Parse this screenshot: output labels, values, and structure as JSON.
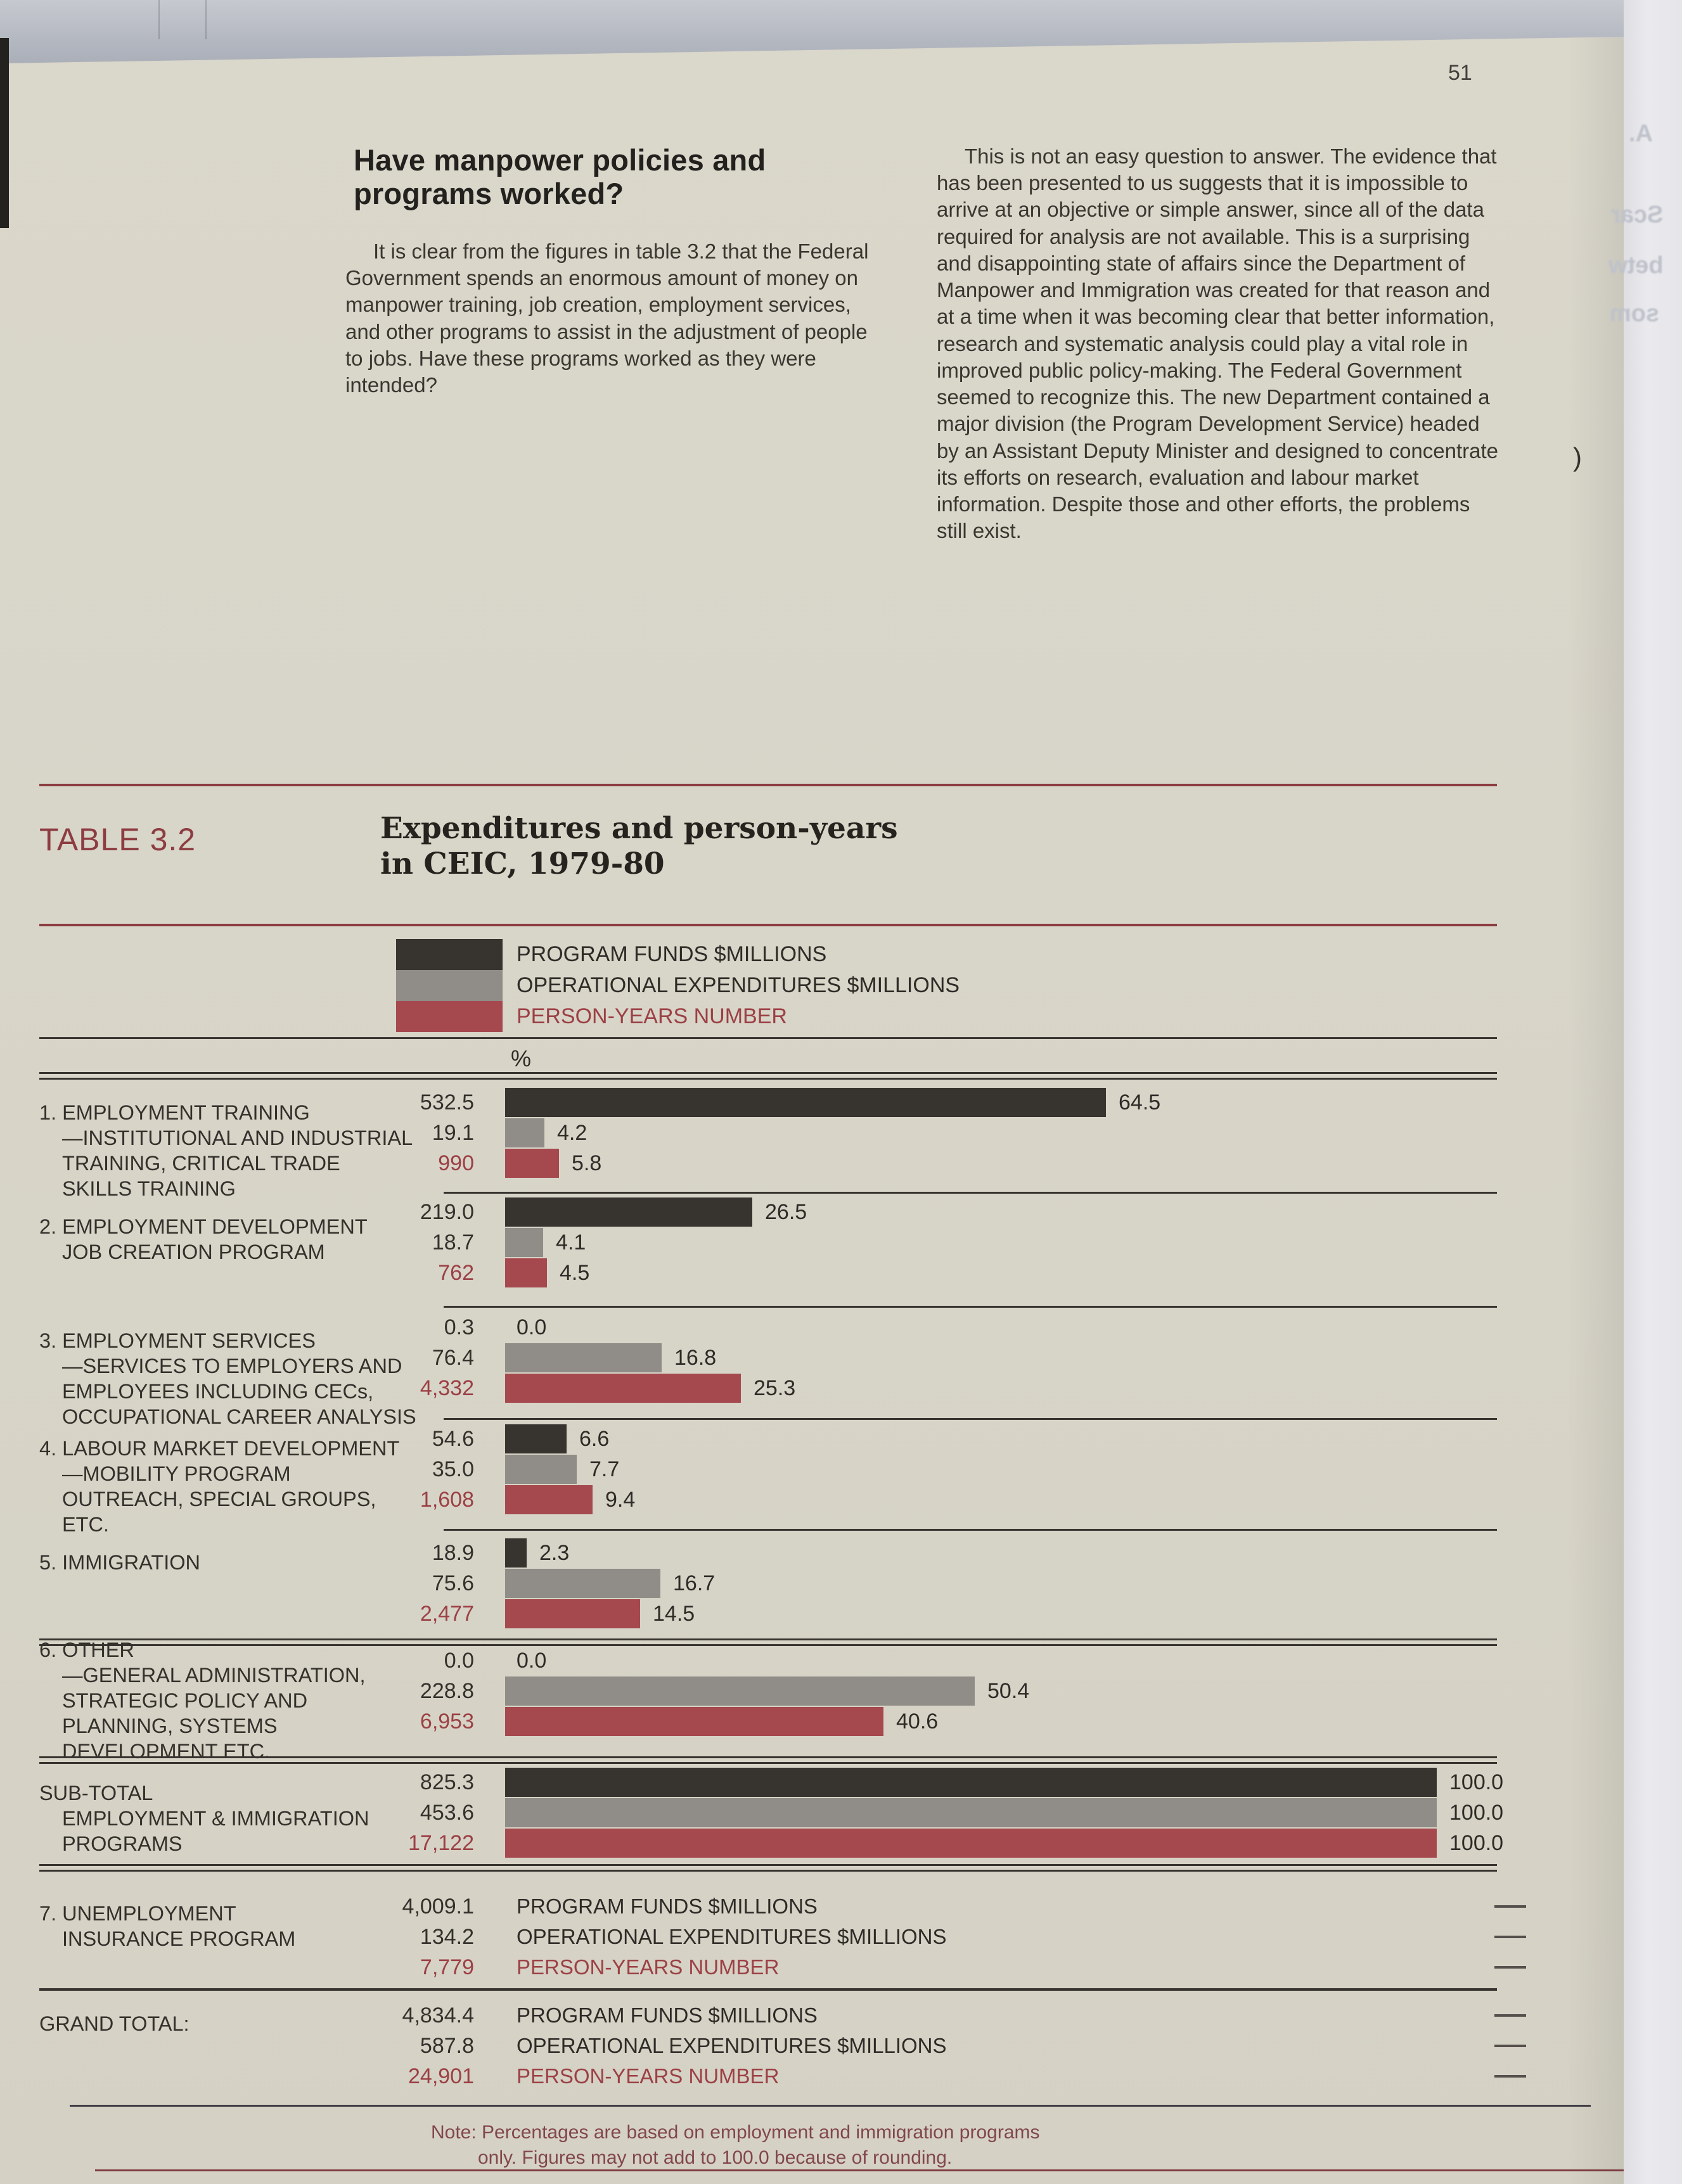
{
  "page": {
    "number": "51"
  },
  "article": {
    "heading": "Have manpower policies and programs worked?",
    "left_paragraph": "It is clear from the figures in table 3.2 that the Federal Government spends an enormous amount of money on manpower training, job creation, employment services, and other programs to assist in the adjustment of people to jobs. Have these programs worked as they were intended?",
    "right_paragraph": "This is not an easy question to answer. The evidence that has been presented to us suggests that it is impossible to arrive at an objective or simple answer, since all of the data required for analysis are not available. This is a surprising and disappointing state of affairs since the Department of Manpower and Immigration was created for that reason and at a time when it was becoming clear that better information, research and systematic analysis could play a vital role in improved public policy-making. The Federal Government seemed to recognize this. The new Department contained a major division (the Program Development Service) headed by an Assistant Deputy Minister and designed to concentrate its efforts on research, evaluation and labour market information. Despite those and other efforts, the problems still exist."
  },
  "table": {
    "label": "TABLE 3.2",
    "title_line1": "Expenditures and person-years",
    "title_line2": "in CEIC, 1979-80",
    "axis_unit": "%",
    "legend": [
      {
        "name": "PROGRAM FUNDS $MILLIONS",
        "color": "#37332e",
        "text_color": "#2e2b27"
      },
      {
        "name": "OPERATIONAL EXPENDITURES $MILLIONS",
        "color": "#908d88",
        "text_color": "#2e2b27"
      },
      {
        "name": "PERSON-YEARS NUMBER",
        "color": "#a5494e",
        "text_color": "#9c4045"
      }
    ],
    "note_line1": "Note: Percentages are based on employment and immigration programs",
    "note_line2": "only. Figures may not add to 100.0 because of rounding."
  },
  "chart_data": {
    "type": "bar",
    "orientation": "horizontal",
    "unit": "%",
    "xlim": [
      0,
      100
    ],
    "series": [
      "PROGRAM FUNDS $MILLIONS",
      "OPERATIONAL EXPENDITURES $MILLIONS",
      "PERSON-YEARS NUMBER"
    ],
    "rows": [
      {
        "label_lines": [
          "1. EMPLOYMENT TRAINING",
          "—INSTITUTIONAL AND INDUSTRIAL",
          "TRAINING, CRITICAL TRADE",
          "SKILLS TRAINING"
        ],
        "entries": [
          {
            "series": 0,
            "value": "532.5",
            "pct": 64.5,
            "pct_label": "64.5"
          },
          {
            "series": 1,
            "value": "19.1",
            "pct": 4.2,
            "pct_label": "4.2"
          },
          {
            "series": 2,
            "value": "990",
            "pct": 5.8,
            "pct_label": "5.8"
          }
        ]
      },
      {
        "label_lines": [
          "2. EMPLOYMENT DEVELOPMENT",
          "JOB CREATION PROGRAM"
        ],
        "entries": [
          {
            "series": 0,
            "value": "219.0",
            "pct": 26.5,
            "pct_label": "26.5"
          },
          {
            "series": 1,
            "value": "18.7",
            "pct": 4.1,
            "pct_label": "4.1"
          },
          {
            "series": 2,
            "value": "762",
            "pct": 4.5,
            "pct_label": "4.5"
          }
        ]
      },
      {
        "label_lines": [
          "3. EMPLOYMENT SERVICES",
          "—SERVICES TO EMPLOYERS AND",
          "EMPLOYEES INCLUDING CECs,",
          "OCCUPATIONAL CAREER ANALYSIS"
        ],
        "entries": [
          {
            "series": 0,
            "value": "0.3",
            "pct": 0,
            "pct_label": "0.0"
          },
          {
            "series": 1,
            "value": "76.4",
            "pct": 16.8,
            "pct_label": "16.8"
          },
          {
            "series": 2,
            "value": "4,332",
            "pct": 25.3,
            "pct_label": "25.3"
          }
        ]
      },
      {
        "label_lines": [
          "4. LABOUR MARKET DEVELOPMENT",
          "—MOBILITY PROGRAM",
          "OUTREACH, SPECIAL GROUPS,",
          "ETC."
        ],
        "entries": [
          {
            "series": 0,
            "value": "54.6",
            "pct": 6.6,
            "pct_label": "6.6"
          },
          {
            "series": 1,
            "value": "35.0",
            "pct": 7.7,
            "pct_label": "7.7"
          },
          {
            "series": 2,
            "value": "1,608",
            "pct": 9.4,
            "pct_label": "9.4"
          }
        ]
      },
      {
        "label_lines": [
          "5. IMMIGRATION"
        ],
        "entries": [
          {
            "series": 0,
            "value": "18.9",
            "pct": 2.3,
            "pct_label": "2.3"
          },
          {
            "series": 1,
            "value": "75.6",
            "pct": 16.7,
            "pct_label": "16.7"
          },
          {
            "series": 2,
            "value": "2,477",
            "pct": 14.5,
            "pct_label": "14.5"
          }
        ]
      },
      {
        "label_lines": [
          "6. OTHER",
          "—GENERAL ADMINISTRATION,",
          "STRATEGIC POLICY AND",
          "PLANNING, SYSTEMS",
          "DEVELOPMENT ETC."
        ],
        "entries": [
          {
            "series": 0,
            "value": "0.0",
            "pct": 0,
            "pct_label": "0.0"
          },
          {
            "series": 1,
            "value": "228.8",
            "pct": 50.4,
            "pct_label": "50.4"
          },
          {
            "series": 2,
            "value": "6,953",
            "pct": 40.6,
            "pct_label": "40.6"
          }
        ]
      },
      {
        "label_lines": [
          "SUB-TOTAL",
          "EMPLOYMENT & IMMIGRATION",
          "PROGRAMS"
        ],
        "entries": [
          {
            "series": 0,
            "value": "825.3",
            "pct": 100,
            "pct_label": "100.0"
          },
          {
            "series": 1,
            "value": "453.6",
            "pct": 100,
            "pct_label": "100.0"
          },
          {
            "series": 2,
            "value": "17,122",
            "pct": 100,
            "pct_label": "100.0"
          }
        ]
      },
      {
        "label_lines": [
          "7. UNEMPLOYMENT",
          "INSURANCE PROGRAM"
        ],
        "entries": [
          {
            "series": 0,
            "value": "4,009.1",
            "text_label": "PROGRAM FUNDS $MILLIONS",
            "dash": true
          },
          {
            "series": 1,
            "value": "134.2",
            "text_label": "OPERATIONAL EXPENDITURES $MILLIONS",
            "dash": true
          },
          {
            "series": 2,
            "value": "7,779",
            "text_label": "PERSON-YEARS NUMBER",
            "dash": true
          }
        ]
      },
      {
        "label_lines": [
          "GRAND TOTAL:"
        ],
        "entries": [
          {
            "series": 0,
            "value": "4,834.4",
            "text_label": "PROGRAM FUNDS $MILLIONS",
            "dash": true
          },
          {
            "series": 1,
            "value": "587.8",
            "text_label": "OPERATIONAL EXPENDITURES $MILLIONS",
            "dash": true
          },
          {
            "series": 2,
            "value": "24,901",
            "text_label": "PERSON-YEARS NUMBER",
            "dash": true
          }
        ]
      }
    ]
  },
  "artifacts": {
    "ghost_texts": [
      "A.",
      "Scar",
      "betw",
      "som"
    ],
    "bracket": ")"
  }
}
